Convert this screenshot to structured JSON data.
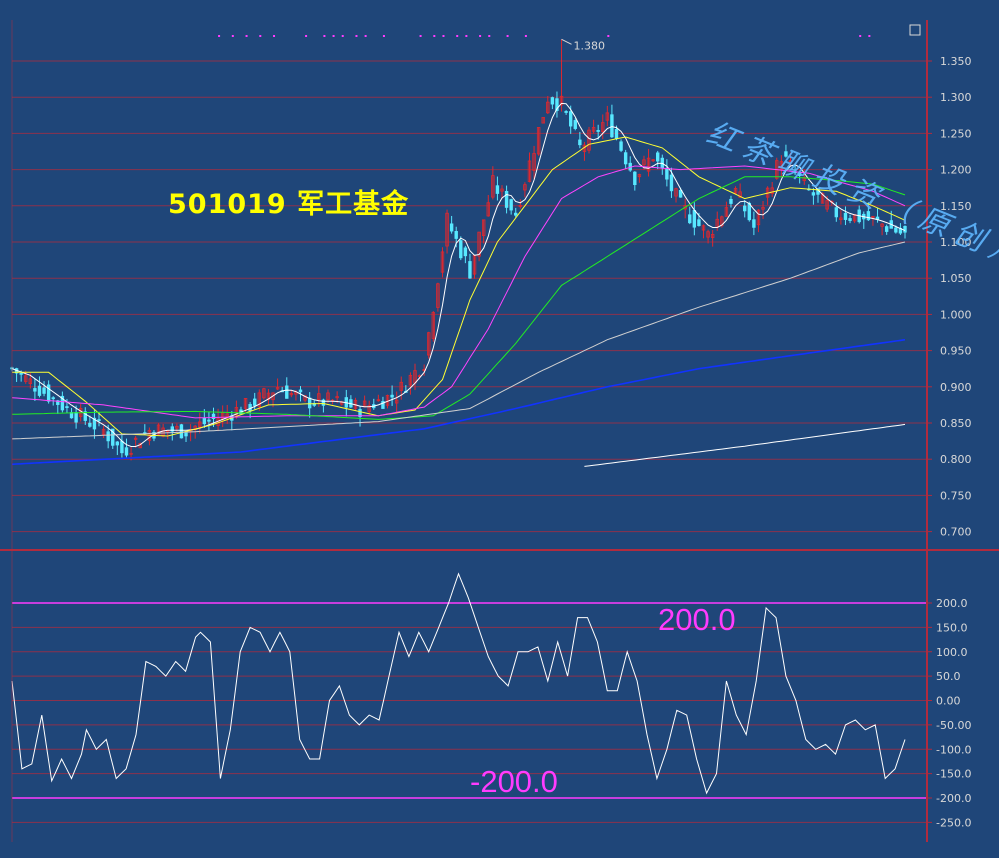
{
  "title": "501019 军工基金",
  "watermark": "红茶聊投资（原创）",
  "peak_label": "1.380",
  "oscillator_labels": {
    "upper": "200.0",
    "lower": "-200.0"
  },
  "colors": {
    "background": "#1f4679",
    "grid": "#b12b3e",
    "axis": "#b12b3e",
    "axis_text": "#d8d8d8",
    "up_candle": "#e0282e",
    "down_candle": "#58e8ff",
    "title": "#ffff00",
    "oscillator": "#ffffff",
    "threshold": "#ff3cff",
    "ma_colors": [
      "#ffffff",
      "#ffff33",
      "#ff44ff",
      "#22ee22",
      "#d0d0d0",
      "#1133ff",
      "#ffffff"
    ]
  },
  "chart_data": [
    {
      "type": "candlestick",
      "y_ticks": [
        "1.350",
        "1.300",
        "1.250",
        "1.200",
        "1.150",
        "1.100",
        "1.050",
        "1.000",
        "0.950",
        "0.900",
        "0.850",
        "0.800",
        "0.750",
        "0.700"
      ],
      "ylim": [
        0.67,
        1.39
      ],
      "peak": {
        "index": 120,
        "value": 1.38
      },
      "close_anchors": [
        [
          0,
          0.925
        ],
        [
          12,
          0.87
        ],
        [
          20,
          0.84
        ],
        [
          24,
          0.81
        ],
        [
          30,
          0.84
        ],
        [
          38,
          0.84
        ],
        [
          44,
          0.855
        ],
        [
          52,
          0.875
        ],
        [
          58,
          0.9
        ],
        [
          64,
          0.88
        ],
        [
          70,
          0.88
        ],
        [
          76,
          0.87
        ],
        [
          84,
          0.89
        ],
        [
          90,
          0.935
        ],
        [
          95,
          1.13
        ],
        [
          100,
          1.06
        ],
        [
          105,
          1.18
        ],
        [
          110,
          1.14
        ],
        [
          117,
          1.3
        ],
        [
          120,
          1.29
        ],
        [
          124,
          1.23
        ],
        [
          130,
          1.27
        ],
        [
          136,
          1.19
        ],
        [
          140,
          1.22
        ],
        [
          146,
          1.15
        ],
        [
          152,
          1.11
        ],
        [
          158,
          1.17
        ],
        [
          162,
          1.12
        ],
        [
          168,
          1.22
        ],
        [
          174,
          1.17
        ],
        [
          180,
          1.14
        ],
        [
          188,
          1.13
        ],
        [
          195,
          1.11
        ]
      ],
      "moving_averages": [
        {
          "color": "#ffff33",
          "anchors": [
            [
              0,
              0.92
            ],
            [
              8,
              0.92
            ],
            [
              16,
              0.88
            ],
            [
              24,
              0.835
            ],
            [
              34,
              0.832
            ],
            [
              44,
              0.848
            ],
            [
              56,
              0.875
            ],
            [
              68,
              0.877
            ],
            [
              80,
              0.86
            ],
            [
              88,
              0.868
            ],
            [
              94,
              0.91
            ],
            [
              100,
              1.02
            ],
            [
              106,
              1.1
            ],
            [
              112,
              1.15
            ],
            [
              118,
              1.2
            ],
            [
              126,
              1.235
            ],
            [
              134,
              1.245
            ],
            [
              142,
              1.23
            ],
            [
              150,
              1.19
            ],
            [
              160,
              1.16
            ],
            [
              170,
              1.175
            ],
            [
              180,
              1.17
            ],
            [
              188,
              1.15
            ],
            [
              195,
              1.13
            ]
          ]
        },
        {
          "color": "#ff44ff",
          "anchors": [
            [
              0,
              0.885
            ],
            [
              20,
              0.875
            ],
            [
              40,
              0.857
            ],
            [
              60,
              0.86
            ],
            [
              80,
              0.86
            ],
            [
              90,
              0.872
            ],
            [
              96,
              0.9
            ],
            [
              104,
              0.98
            ],
            [
              112,
              1.08
            ],
            [
              120,
              1.16
            ],
            [
              128,
              1.19
            ],
            [
              136,
              1.205
            ],
            [
              146,
              1.2
            ],
            [
              160,
              1.205
            ],
            [
              174,
              1.195
            ],
            [
              188,
              1.17
            ],
            [
              195,
              1.15
            ]
          ]
        },
        {
          "color": "#22ee22",
          "anchors": [
            [
              0,
              0.862
            ],
            [
              20,
              0.865
            ],
            [
              40,
              0.866
            ],
            [
              60,
              0.862
            ],
            [
              80,
              0.855
            ],
            [
              92,
              0.86
            ],
            [
              100,
              0.89
            ],
            [
              110,
              0.96
            ],
            [
              120,
              1.04
            ],
            [
              130,
              1.08
            ],
            [
              140,
              1.12
            ],
            [
              150,
              1.16
            ],
            [
              160,
              1.19
            ],
            [
              170,
              1.19
            ],
            [
              180,
              1.185
            ],
            [
              188,
              1.18
            ],
            [
              195,
              1.165
            ]
          ]
        },
        {
          "color": "#d0d0d0",
          "anchors": [
            [
              0,
              0.828
            ],
            [
              40,
              0.838
            ],
            [
              80,
              0.852
            ],
            [
              100,
              0.87
            ],
            [
              115,
              0.92
            ],
            [
              130,
              0.965
            ],
            [
              150,
              1.01
            ],
            [
              170,
              1.05
            ],
            [
              185,
              1.085
            ],
            [
              195,
              1.1
            ]
          ]
        },
        {
          "color": "#1133ff",
          "anchors": [
            [
              0,
              0.793
            ],
            [
              50,
              0.81
            ],
            [
              90,
              0.842
            ],
            [
              110,
              0.87
            ],
            [
              130,
              0.9
            ],
            [
              150,
              0.925
            ],
            [
              170,
              0.943
            ],
            [
              195,
              0.965
            ]
          ]
        },
        {
          "color": "#ffffff",
          "anchors": [
            [
              125,
              0.79
            ],
            [
              160,
              0.818
            ],
            [
              195,
              0.848
            ]
          ]
        }
      ],
      "purple_markers": [
        45,
        48,
        51,
        54,
        57,
        64,
        68,
        70,
        72,
        75,
        77,
        81,
        89,
        92,
        94,
        97,
        99,
        102,
        104,
        108,
        112,
        130,
        185,
        187
      ]
    },
    {
      "type": "line",
      "y_ticks": [
        "200.0",
        "150.0",
        "100.0",
        "50.0",
        "0.00",
        "-50.00",
        "-100.0",
        "-150.0",
        "-200.0",
        "-250.0"
      ],
      "ylim": [
        -275,
        240
      ],
      "thresholds": [
        200,
        -200
      ],
      "anchors": [
        [
          0,
          40
        ],
        [
          2,
          -140
        ],
        [
          4,
          -130
        ],
        [
          5,
          -80
        ],
        [
          6,
          -30
        ],
        [
          8,
          -165
        ],
        [
          10,
          -120
        ],
        [
          12,
          -160
        ],
        [
          14,
          -110
        ],
        [
          15,
          -60
        ],
        [
          17,
          -100
        ],
        [
          19,
          -80
        ],
        [
          21,
          -160
        ],
        [
          23,
          -140
        ],
        [
          25,
          -70
        ],
        [
          27,
          80
        ],
        [
          29,
          70
        ],
        [
          31,
          50
        ],
        [
          33,
          80
        ],
        [
          35,
          60
        ],
        [
          37,
          130
        ],
        [
          38,
          140
        ],
        [
          40,
          120
        ],
        [
          42,
          -160
        ],
        [
          44,
          -60
        ],
        [
          46,
          100
        ],
        [
          48,
          150
        ],
        [
          50,
          140
        ],
        [
          52,
          100
        ],
        [
          54,
          140
        ],
        [
          56,
          100
        ],
        [
          58,
          -80
        ],
        [
          60,
          -120
        ],
        [
          62,
          -120
        ],
        [
          64,
          0
        ],
        [
          66,
          30
        ],
        [
          68,
          -30
        ],
        [
          70,
          -50
        ],
        [
          72,
          -30
        ],
        [
          74,
          -40
        ],
        [
          76,
          50
        ],
        [
          78,
          140
        ],
        [
          80,
          90
        ],
        [
          82,
          140
        ],
        [
          84,
          100
        ],
        [
          86,
          150
        ],
        [
          88,
          200
        ],
        [
          90,
          260
        ],
        [
          92,
          210
        ],
        [
          94,
          150
        ],
        [
          96,
          90
        ],
        [
          98,
          50
        ],
        [
          100,
          30
        ],
        [
          102,
          100
        ],
        [
          104,
          100
        ],
        [
          106,
          110
        ],
        [
          108,
          40
        ],
        [
          110,
          120
        ],
        [
          112,
          50
        ],
        [
          114,
          170
        ],
        [
          116,
          170
        ],
        [
          118,
          120
        ],
        [
          120,
          20
        ],
        [
          122,
          20
        ],
        [
          124,
          100
        ],
        [
          126,
          40
        ],
        [
          128,
          -70
        ],
        [
          130,
          -160
        ],
        [
          132,
          -100
        ],
        [
          134,
          -20
        ],
        [
          136,
          -30
        ],
        [
          138,
          -120
        ],
        [
          140,
          -190
        ],
        [
          142,
          -150
        ],
        [
          144,
          40
        ],
        [
          146,
          -30
        ],
        [
          148,
          -70
        ],
        [
          150,
          40
        ],
        [
          152,
          190
        ],
        [
          154,
          170
        ],
        [
          156,
          50
        ],
        [
          158,
          0
        ],
        [
          160,
          -80
        ],
        [
          162,
          -100
        ],
        [
          164,
          -90
        ],
        [
          166,
          -110
        ],
        [
          168,
          -50
        ],
        [
          170,
          -40
        ],
        [
          172,
          -60
        ],
        [
          174,
          -50
        ],
        [
          176,
          -160
        ],
        [
          178,
          -140
        ],
        [
          180,
          -80
        ]
      ]
    }
  ]
}
